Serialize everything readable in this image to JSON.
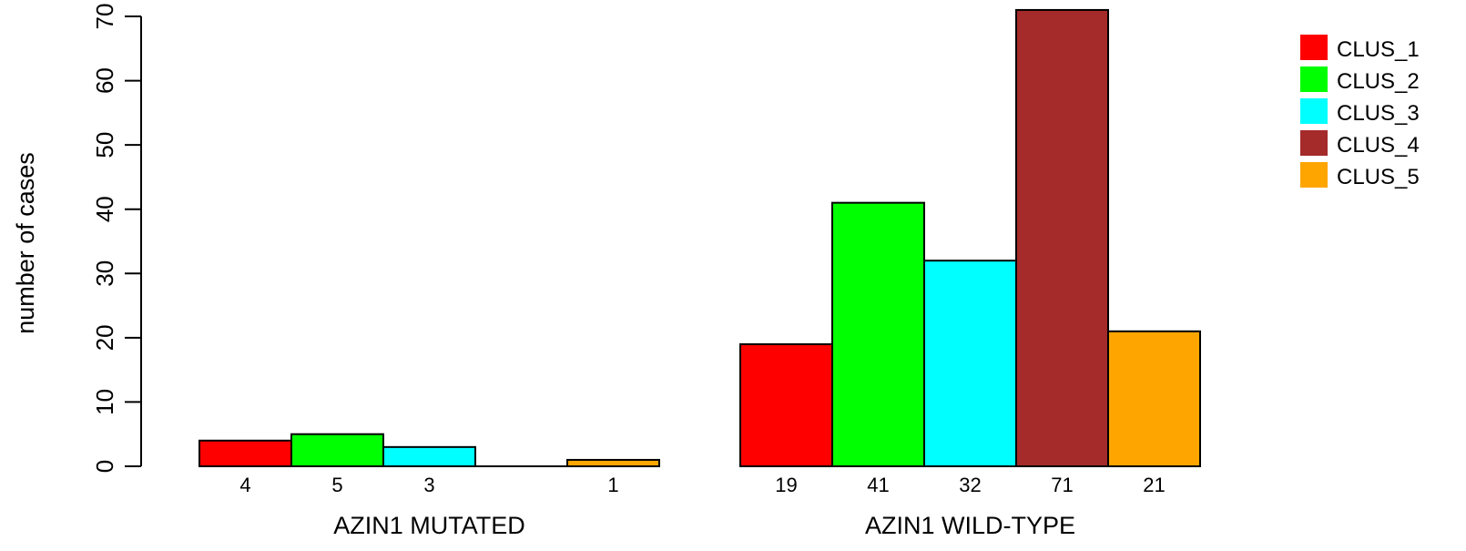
{
  "chart_data": {
    "type": "bar",
    "ylabel": "number of cases",
    "ylim": [
      0,
      70
    ],
    "yticks": [
      0,
      10,
      20,
      30,
      40,
      50,
      60,
      70
    ],
    "grid": false,
    "legend_position": "top-right",
    "groups": [
      {
        "label": "AZIN1 MUTATED",
        "values": [
          4,
          5,
          3,
          0,
          1
        ],
        "count_labels": [
          "4",
          "5",
          "3",
          "",
          "1"
        ]
      },
      {
        "label": "AZIN1 WILD-TYPE",
        "values": [
          19,
          41,
          32,
          71,
          21
        ],
        "count_labels": [
          "19",
          "41",
          "32",
          "71",
          "21"
        ]
      }
    ],
    "series": [
      {
        "name": "CLUS_1",
        "color": "#ff0000"
      },
      {
        "name": "CLUS_2",
        "color": "#00ff00"
      },
      {
        "name": "CLUS_3",
        "color": "#00ffff"
      },
      {
        "name": "CLUS_4",
        "color": "#a52a2a"
      },
      {
        "name": "CLUS_5",
        "color": "#ffa500"
      }
    ]
  }
}
